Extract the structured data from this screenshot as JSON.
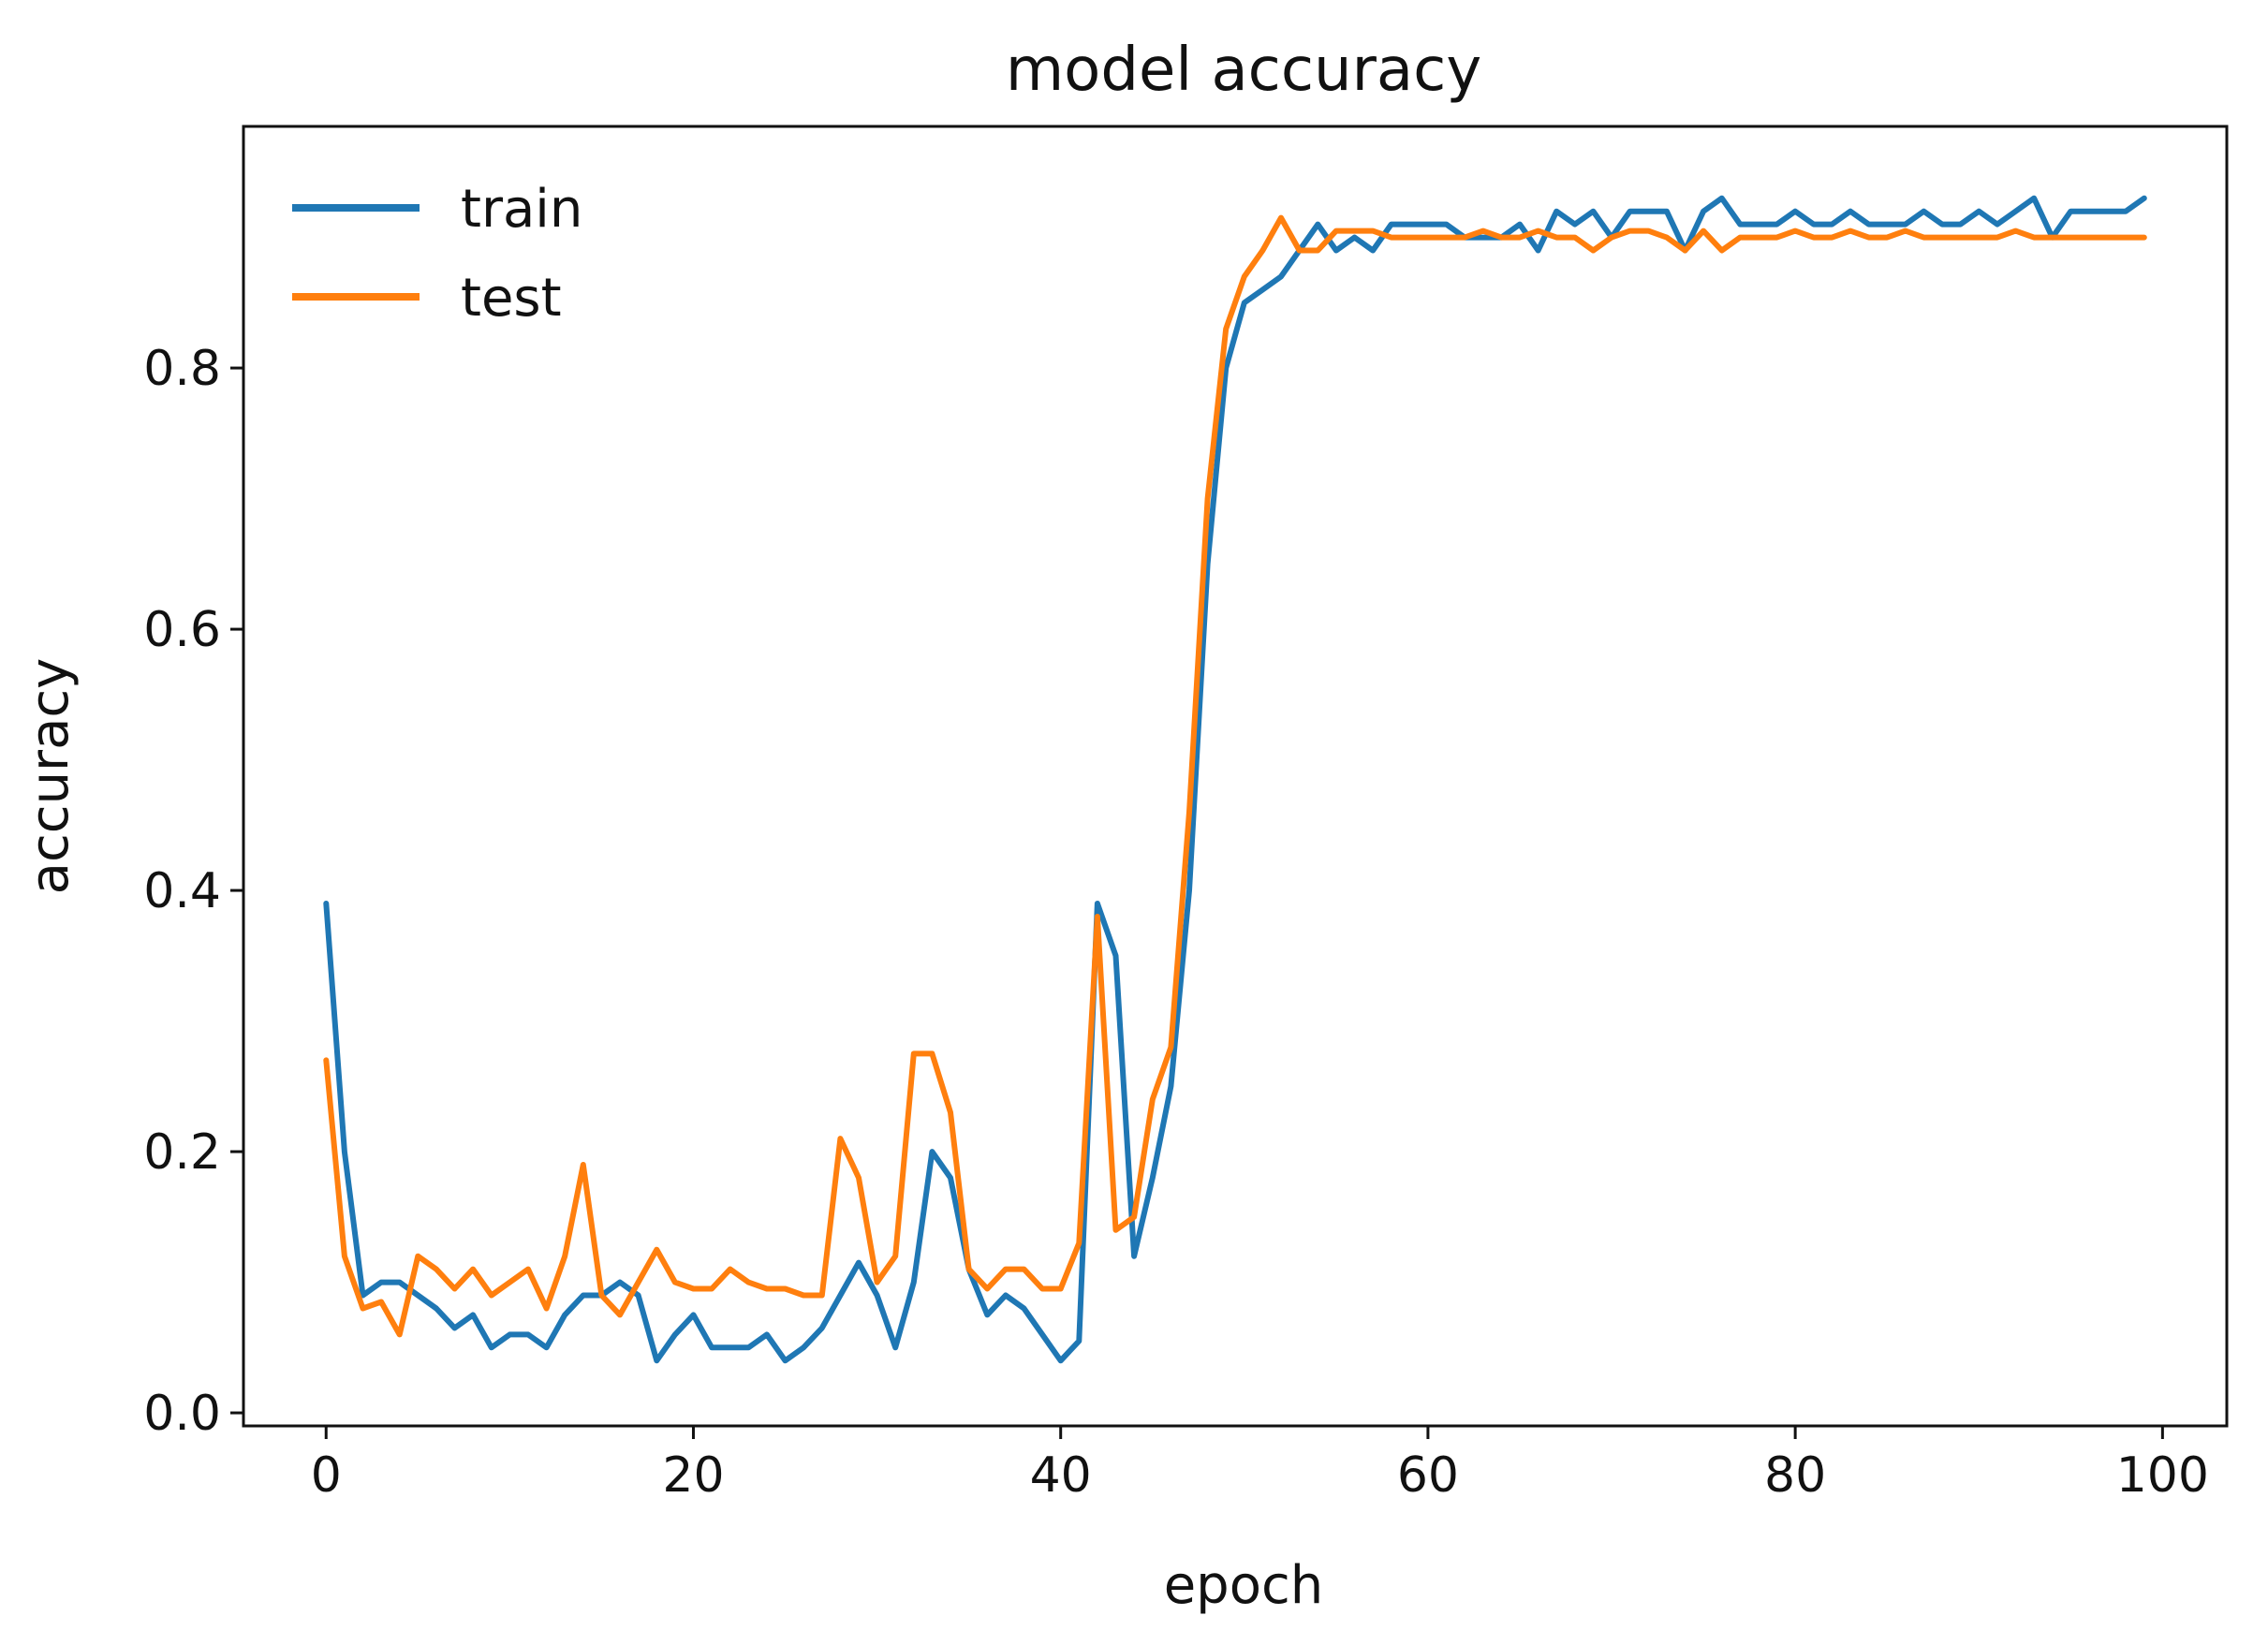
{
  "chart_data": {
    "type": "line",
    "title": "model accuracy",
    "xlabel": "epoch",
    "ylabel": "accuracy",
    "xlim": [
      -4.5,
      103.5
    ],
    "ylim": [
      -0.01,
      0.985
    ],
    "xticks": [
      0,
      20,
      40,
      60,
      80,
      100
    ],
    "yticks": [
      0.0,
      0.2,
      0.4,
      0.6,
      0.8
    ],
    "xtick_labels": [
      "0",
      "20",
      "40",
      "60",
      "80",
      "100"
    ],
    "ytick_labels": [
      "0.0",
      "0.2",
      "0.4",
      "0.6",
      "0.8"
    ],
    "grid": false,
    "legend_position": "top-left",
    "series": [
      {
        "name": "train",
        "color": "#1f77b4",
        "x": [
          0,
          1,
          2,
          3,
          4,
          5,
          6,
          7,
          8,
          9,
          10,
          11,
          12,
          13,
          14,
          15,
          16,
          17,
          18,
          19,
          20,
          21,
          22,
          23,
          24,
          25,
          26,
          27,
          28,
          29,
          30,
          31,
          32,
          33,
          34,
          35,
          36,
          37,
          38,
          39,
          40,
          41,
          42,
          43,
          44,
          45,
          46,
          47,
          48,
          49,
          50,
          51,
          52,
          53,
          54,
          55,
          56,
          57,
          58,
          59,
          60,
          61,
          62,
          63,
          64,
          65,
          66,
          67,
          68,
          69,
          70,
          71,
          72,
          73,
          74,
          75,
          76,
          77,
          78,
          79,
          80,
          81,
          82,
          83,
          84,
          85,
          86,
          87,
          88,
          89,
          90,
          91,
          92,
          93,
          94,
          95,
          96,
          97,
          98,
          99
        ],
        "values": [
          0.39,
          0.2,
          0.09,
          0.1,
          0.1,
          0.09,
          0.08,
          0.065,
          0.075,
          0.05,
          0.06,
          0.06,
          0.05,
          0.075,
          0.09,
          0.09,
          0.1,
          0.09,
          0.04,
          0.06,
          0.075,
          0.05,
          0.05,
          0.05,
          0.06,
          0.04,
          0.05,
          0.065,
          0.09,
          0.115,
          0.09,
          0.05,
          0.1,
          0.2,
          0.18,
          0.11,
          0.075,
          0.09,
          0.08,
          0.06,
          0.04,
          0.055,
          0.39,
          0.35,
          0.12,
          0.18,
          0.25,
          0.4,
          0.65,
          0.8,
          0.85,
          0.86,
          0.87,
          0.89,
          0.91,
          0.89,
          0.9,
          0.89,
          0.91,
          0.91,
          0.91,
          0.91,
          0.9,
          0.9,
          0.9,
          0.91,
          0.89,
          0.92,
          0.91,
          0.92,
          0.9,
          0.92,
          0.92,
          0.92,
          0.89,
          0.92,
          0.93,
          0.91,
          0.91,
          0.91,
          0.92,
          0.91,
          0.91,
          0.92,
          0.91,
          0.91,
          0.91,
          0.92,
          0.91,
          0.91,
          0.92,
          0.91,
          0.92,
          0.93,
          0.9,
          0.92,
          0.92,
          0.92,
          0.92,
          0.93
        ]
      },
      {
        "name": "test",
        "color": "#ff7f0e",
        "x": [
          0,
          1,
          2,
          3,
          4,
          5,
          6,
          7,
          8,
          9,
          10,
          11,
          12,
          13,
          14,
          15,
          16,
          17,
          18,
          19,
          20,
          21,
          22,
          23,
          24,
          25,
          26,
          27,
          28,
          29,
          30,
          31,
          32,
          33,
          34,
          35,
          36,
          37,
          38,
          39,
          40,
          41,
          42,
          43,
          44,
          45,
          46,
          47,
          48,
          49,
          50,
          51,
          52,
          53,
          54,
          55,
          56,
          57,
          58,
          59,
          60,
          61,
          62,
          63,
          64,
          65,
          66,
          67,
          68,
          69,
          70,
          71,
          72,
          73,
          74,
          75,
          76,
          77,
          78,
          79,
          80,
          81,
          82,
          83,
          84,
          85,
          86,
          87,
          88,
          89,
          90,
          91,
          92,
          93,
          94,
          95,
          96,
          97,
          98,
          99
        ],
        "values": [
          0.27,
          0.12,
          0.08,
          0.085,
          0.06,
          0.12,
          0.11,
          0.095,
          0.11,
          0.09,
          0.1,
          0.11,
          0.08,
          0.12,
          0.19,
          0.09,
          0.075,
          0.1,
          0.125,
          0.1,
          0.095,
          0.095,
          0.11,
          0.1,
          0.095,
          0.095,
          0.09,
          0.09,
          0.21,
          0.18,
          0.1,
          0.12,
          0.275,
          0.275,
          0.23,
          0.11,
          0.095,
          0.11,
          0.11,
          0.095,
          0.095,
          0.13,
          0.38,
          0.14,
          0.15,
          0.24,
          0.28,
          0.46,
          0.7,
          0.83,
          0.87,
          0.89,
          0.915,
          0.89,
          0.89,
          0.905,
          0.905,
          0.905,
          0.9,
          0.9,
          0.9,
          0.9,
          0.9,
          0.905,
          0.9,
          0.9,
          0.905,
          0.9,
          0.9,
          0.89,
          0.9,
          0.905,
          0.905,
          0.9,
          0.89,
          0.905,
          0.89,
          0.9,
          0.9,
          0.9,
          0.905,
          0.9,
          0.9,
          0.905,
          0.9,
          0.9,
          0.905,
          0.9,
          0.9,
          0.9,
          0.9,
          0.9,
          0.905,
          0.9,
          0.9,
          0.9,
          0.9,
          0.9,
          0.9,
          0.9
        ]
      }
    ]
  }
}
